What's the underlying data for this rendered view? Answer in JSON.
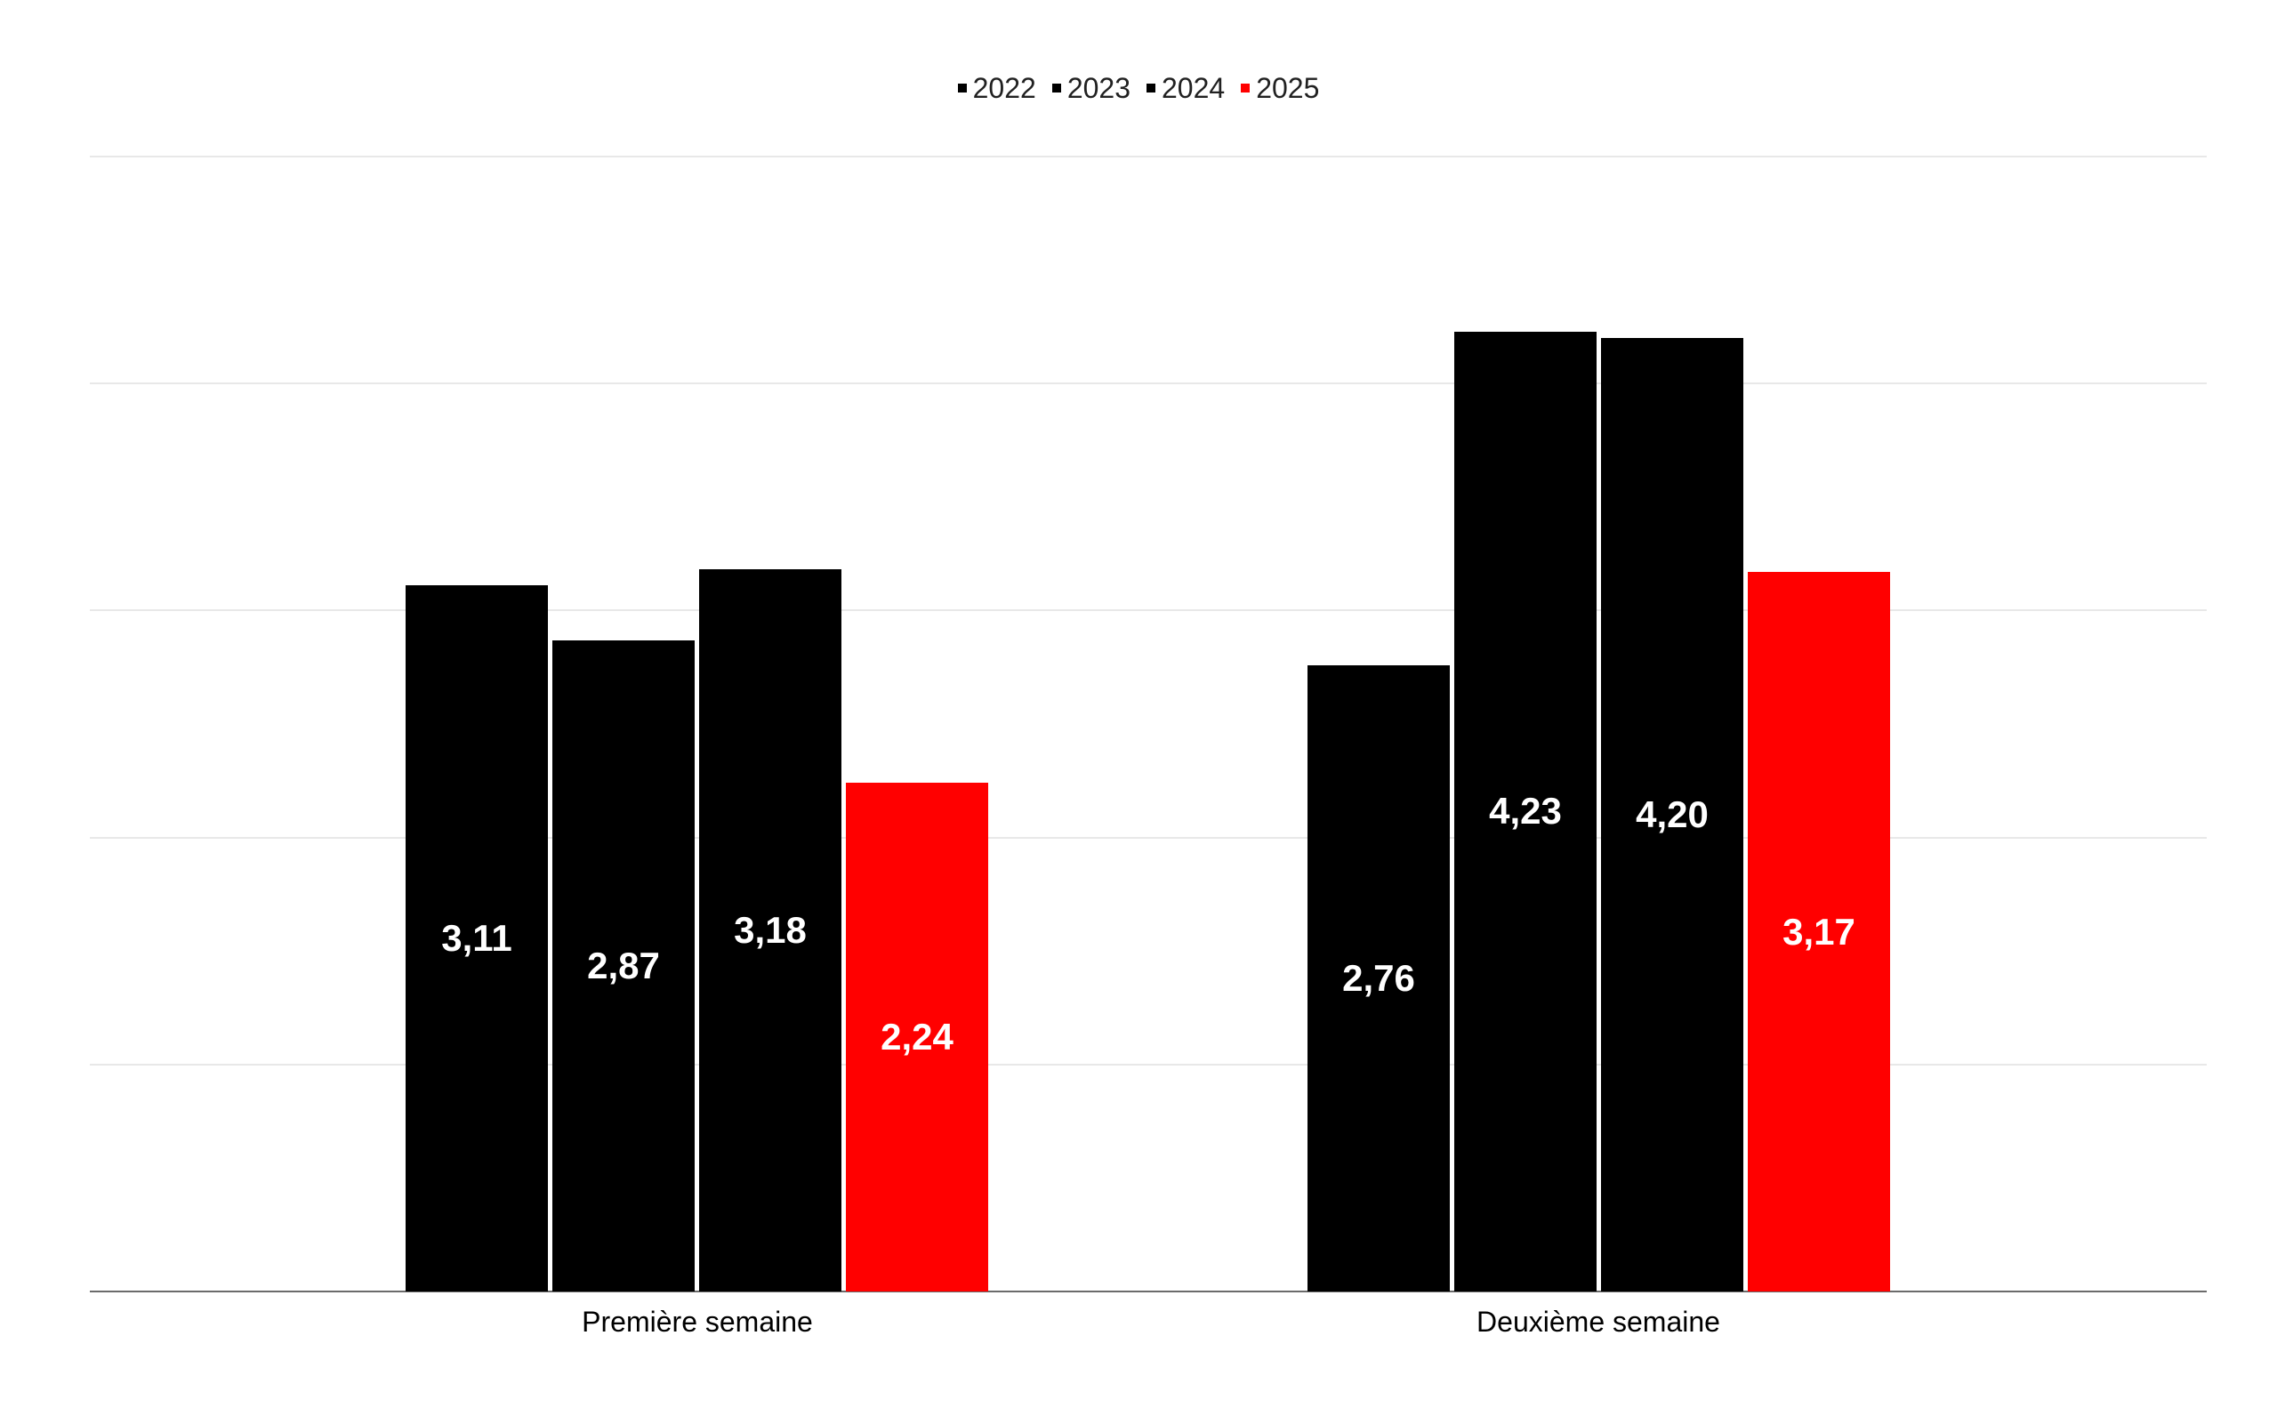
{
  "chart_data": {
    "type": "bar",
    "title": "",
    "xlabel": "",
    "ylabel": "",
    "categories": [
      "Première semaine",
      "Deuxième semaine"
    ],
    "series": [
      {
        "name": "2022",
        "color": "#000000",
        "values": [
          3.11,
          2.76
        ],
        "labels": [
          "3,11",
          "2,76"
        ]
      },
      {
        "name": "2023",
        "color": "#000000",
        "values": [
          2.87,
          4.23
        ],
        "labels": [
          "2,87",
          "4,23"
        ]
      },
      {
        "name": "2024",
        "color": "#000000",
        "values": [
          3.18,
          4.2
        ],
        "labels": [
          "3,18",
          "4,20"
        ]
      },
      {
        "name": "2025",
        "color": "#ff0000",
        "values": [
          2.24,
          3.17
        ],
        "labels": [
          "2,24",
          "3,17"
        ]
      }
    ],
    "ylim": [
      0,
      5
    ],
    "gridline_step": 1,
    "grid": true,
    "y_axis_labels_visible": false,
    "legend_position": "top",
    "data_label_position": "center",
    "number_format": "comma-decimal"
  },
  "colors": {
    "background": "#ffffff",
    "gridline": "#e8e8e8",
    "axis_line": "#6b6b6b",
    "data_label_text": "#ffffff",
    "legend_text": "#212121",
    "category_text": "#000000"
  }
}
